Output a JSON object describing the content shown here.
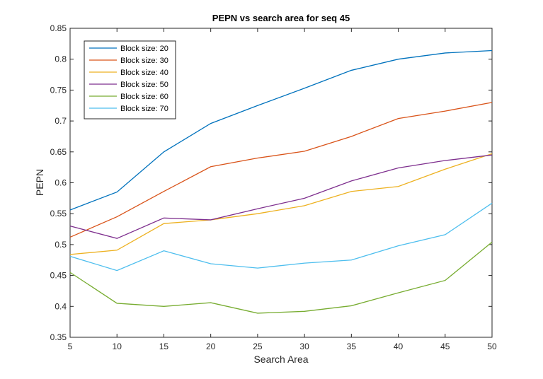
{
  "chart_data": {
    "type": "line",
    "title": "PEPN vs search area for seq 45",
    "xlabel": "Search Area",
    "ylabel": "PEPN",
    "xlim": [
      5,
      50
    ],
    "ylim": [
      0.35,
      0.85
    ],
    "x_ticks": [
      5,
      10,
      15,
      20,
      25,
      30,
      35,
      40,
      45,
      50
    ],
    "y_ticks": [
      0.35,
      0.4,
      0.45,
      0.5,
      0.55,
      0.6,
      0.65,
      0.7,
      0.75,
      0.8,
      0.85
    ],
    "x_tick_labels": [
      "5",
      "10",
      "15",
      "20",
      "25",
      "30",
      "35",
      "40",
      "45",
      "50"
    ],
    "y_tick_labels": [
      "0.35",
      "0.4",
      "0.45",
      "0.5",
      "0.55",
      "0.6",
      "0.65",
      "0.7",
      "0.75",
      "0.8",
      "0.85"
    ],
    "grid": false,
    "legend_position": "top-left",
    "x": [
      5,
      10,
      15,
      20,
      25,
      30,
      35,
      40,
      45,
      50
    ],
    "series": [
      {
        "name": "Block size: 20",
        "color": "#0072BD",
        "values": [
          0.556,
          0.585,
          0.65,
          0.696,
          0.725,
          0.753,
          0.782,
          0.8,
          0.81,
          0.814
        ]
      },
      {
        "name": "Block size: 30",
        "color": "#D95319",
        "values": [
          0.512,
          0.545,
          0.586,
          0.626,
          0.64,
          0.651,
          0.675,
          0.704,
          0.716,
          0.73
        ]
      },
      {
        "name": "Block size: 40",
        "color": "#EDB120",
        "values": [
          0.484,
          0.491,
          0.534,
          0.54,
          0.55,
          0.563,
          0.586,
          0.594,
          0.622,
          0.647
        ]
      },
      {
        "name": "Block size: 50",
        "color": "#7E2F8E",
        "values": [
          0.53,
          0.51,
          0.543,
          0.54,
          0.558,
          0.575,
          0.603,
          0.624,
          0.636,
          0.645
        ]
      },
      {
        "name": "Block size: 60",
        "color": "#77AC30",
        "values": [
          0.455,
          0.405,
          0.4,
          0.406,
          0.389,
          0.392,
          0.401,
          0.422,
          0.442,
          0.504
        ]
      },
      {
        "name": "Block size: 70",
        "color": "#4DBEEE",
        "values": [
          0.481,
          0.458,
          0.49,
          0.469,
          0.462,
          0.47,
          0.475,
          0.498,
          0.516,
          0.567
        ]
      }
    ]
  }
}
